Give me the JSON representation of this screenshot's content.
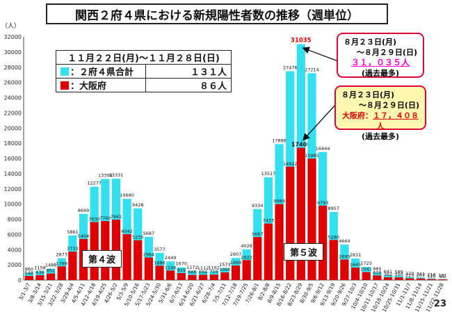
{
  "title": "関西２府４県における新規陽性者数の推移（週単位）",
  "y_unit": "（人）",
  "page_number": "23",
  "summary_table": {
    "period": "１１月２２日(月)〜１１月２８日(日)",
    "rows": [
      {
        "label": "：２府４県合計",
        "value": "１３１人",
        "color": "#33e0f0"
      },
      {
        "label": "：大阪府",
        "value": "８６人",
        "color": "#e00000"
      }
    ]
  },
  "callout_total": {
    "line1": "８月２３日(月)",
    "line2": "〜８月２９日(日)",
    "value": "３１，０３５人",
    "note": "(過去最多)"
  },
  "callout_osaka": {
    "line1": "８月２３日(月)",
    "line2": "〜８月２９日(日)",
    "label": "大阪府：",
    "value": "１７，４０８人",
    "note": "(過去最多)"
  },
  "waves": {
    "wave4": "第４波",
    "wave5": "第５波"
  },
  "chart_data": {
    "type": "bar",
    "ylim": [
      0,
      32000
    ],
    "yticks": [
      0,
      2000,
      4000,
      6000,
      8000,
      10000,
      12000,
      14000,
      16000,
      18000,
      20000,
      22000,
      24000,
      26000,
      28000,
      30000,
      32000
    ],
    "grid": false,
    "colors": {
      "total": "#33e0f0",
      "osaka": "#e00000",
      "peak_label": "#e00000"
    },
    "categories": [
      "3/1-3/7",
      "3/8-3/14",
      "3/15-3/21",
      "3/22-3/28",
      "3/29-4/4",
      "4/5-4/11",
      "4/12-4/18",
      "4/19-4/25",
      "4/26-5/2",
      "5/3-5/9",
      "5/10-5/16",
      "5/17-5/23",
      "5/24-5/30",
      "5/31-6/6",
      "6/7-6/13",
      "6/14-6/20",
      "6/21-6/27",
      "6/28-7/4",
      "7/5-7/11",
      "7/12-7/18",
      "7/19-7/25",
      "7/26-8/1",
      "8/2-8/8",
      "8/9-8/15",
      "8/16-8/22",
      "8/23-8/29",
      "8/30-9/5",
      "9/6-9/12",
      "9/13-9/19",
      "9/20-9/26",
      "9/27-10/3",
      "10/4-10/10",
      "10/11-10/17",
      "10/18-10/24",
      "10/25-10/31",
      "11/1-11/7",
      "11/8-11/14",
      "11/15-11/21",
      "11/22-11/28"
    ],
    "series": [
      {
        "name": "２府４県合計",
        "values": [
          960,
          1158,
          1488,
          2873,
          5861,
          8699,
          12277,
          13304,
          13331,
          10680,
          9428,
          5687,
          3577,
          2449,
          1670,
          1172,
          1112,
          1162,
          1573,
          2907,
          4028,
          9334,
          13517,
          17888,
          27478,
          31035,
          27214,
          16844,
          8957,
          4664,
          2831,
          1725,
          985,
          641,
          599,
          370,
          341,
          216,
          131
        ]
      },
      {
        "name": "大阪府",
        "values": [
          548,
          636,
          852,
          1799,
          3733,
          5404,
          7630,
          7760,
          7942,
          6042,
          5235,
          2964,
          1886,
          1246,
          919,
          666,
          694,
          716,
          1000,
          1899,
          2622,
          5667,
          7433,
          9989,
          14922,
          17408,
          15985,
          9793,
          5280,
          2695,
          1645,
          1041,
          609,
          362,
          350,
          225,
          207,
          128,
          86
        ]
      }
    ]
  }
}
